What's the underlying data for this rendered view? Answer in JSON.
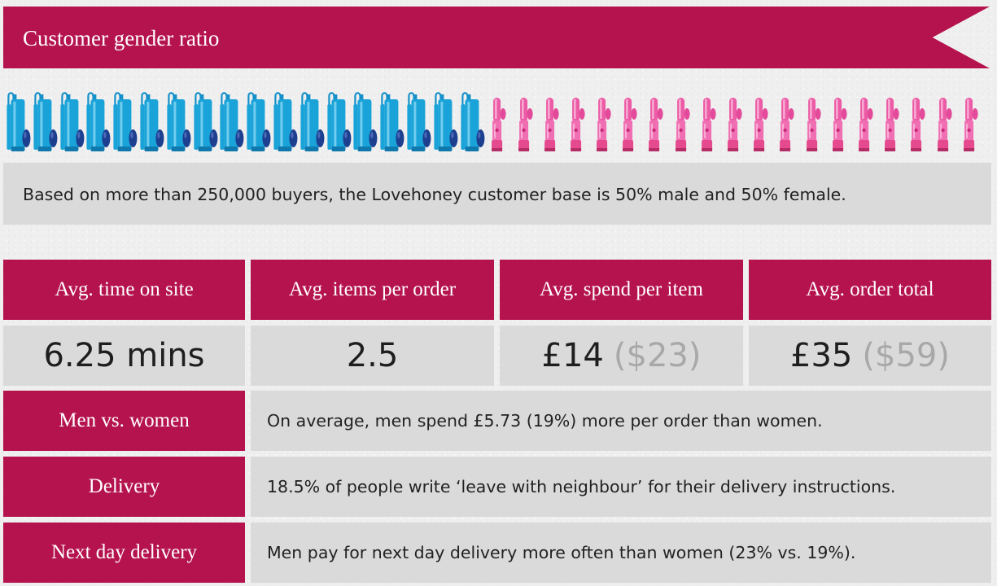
{
  "banner": {
    "title": "Customer gender ratio"
  },
  "gender_icons": {
    "male_icon": "penis-pump-icon",
    "female_icon": "rabbit-vibrator-icon",
    "male_count": 18,
    "female_count": 19,
    "male_color": "#1aa3d8",
    "female_color": "#ec5ba6"
  },
  "summary": "Based on more than 250,000 buyers, the Lovehoney customer base is 50% male and 50% female.",
  "stats": [
    {
      "label": "Avg. time on site",
      "value": "6.25 mins",
      "usd": ""
    },
    {
      "label": "Avg. items per order",
      "value": "2.5",
      "usd": ""
    },
    {
      "label": "Avg. spend per item",
      "value": "£14",
      "usd": "($23)"
    },
    {
      "label": "Avg. order total",
      "value": "£35",
      "usd": "($59)"
    }
  ],
  "facts": [
    {
      "label": "Men vs. women",
      "text": "On average, men spend £5.73 (19%) more per order than women."
    },
    {
      "label": "Delivery",
      "text": "18.5% of people write ‘leave with neighbour’ for their delivery instructions."
    },
    {
      "label": "Next day delivery",
      "text": "Men pay for next day delivery more often than women (23% vs. 19%)."
    }
  ],
  "colors": {
    "accent": "#b5134d",
    "panel": "#dadada",
    "muted_text": "#a8a8a8"
  }
}
